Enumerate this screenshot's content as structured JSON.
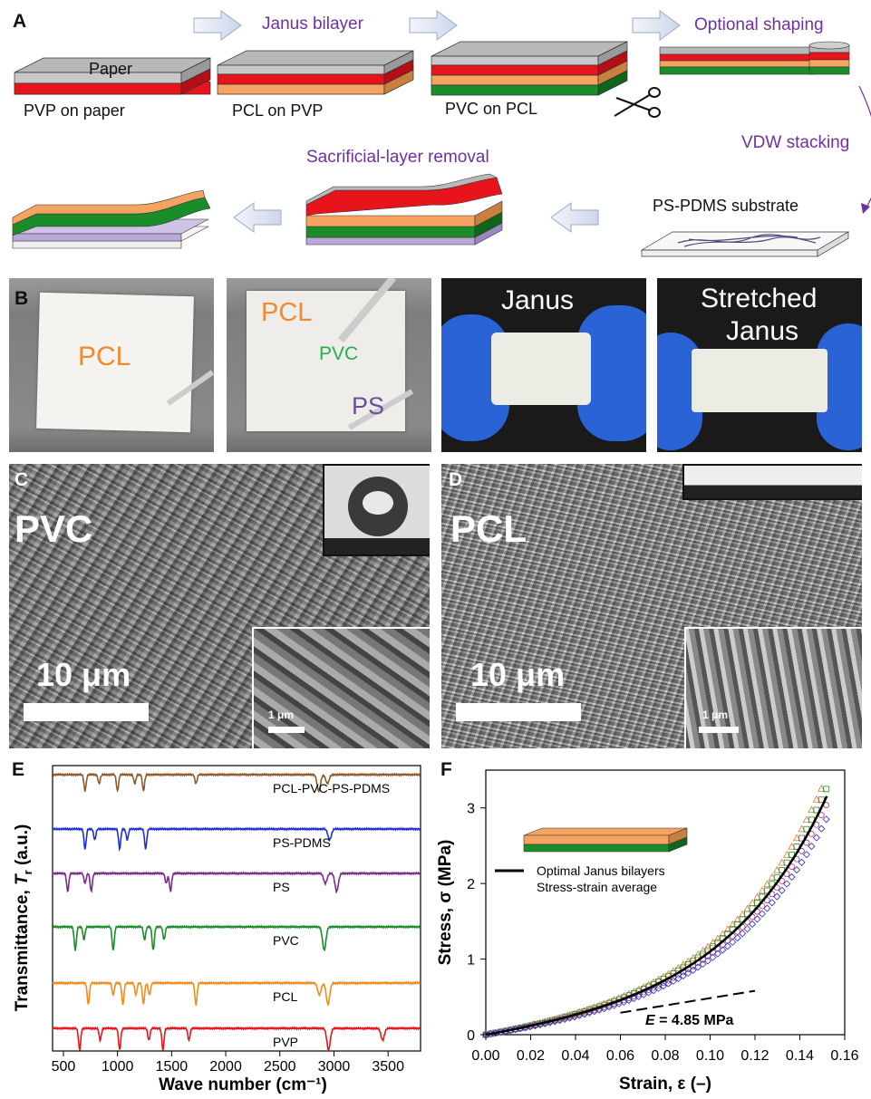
{
  "panelA": {
    "letter": "A",
    "step_janus": "Janus bilayer",
    "step_shaping": "Optional shaping",
    "step_vdw": "VDW stacking",
    "step_removal": "Sacrificial-layer removal",
    "paper_label": "Paper",
    "pvp_on_paper": "PVP on paper",
    "pcl_on_pvp": "PCL on PVP",
    "pvc_on_pcl": "PVC on PCL",
    "substrate_label": "PS-PDMS substrate",
    "colors": {
      "paper": "#b8b8b8",
      "pvp": "#e8141c",
      "pcl": "#f4a460",
      "pvc": "#1a8c2a",
      "ps": "#b9a8d8"
    }
  },
  "panelB": {
    "letter": "B",
    "photo1_label": "PCL",
    "photo2_pcl": "PCL",
    "photo2_pvc": "PVC",
    "photo2_ps": "PS",
    "photo3_label": "Janus",
    "photo4_label1": "Stretched",
    "photo4_label2": "Janus"
  },
  "panelC": {
    "letter": "C",
    "material": "PVC",
    "scale_main": "10 μm",
    "scale_inset": "1 μm"
  },
  "panelD": {
    "letter": "D",
    "material": "PCL",
    "scale_main": "10 μm",
    "scale_inset": "1 μm"
  },
  "panelE": {
    "letter": "E",
    "ylabel_prefix": "Transmittance, ",
    "ylabel_symbol": "T",
    "ylabel_sub": "r",
    "ylabel_suffix": " (a.u.)",
    "xlabel": "Wave number (cm⁻¹)",
    "xticks": [
      "500",
      "1000",
      "1500",
      "2000",
      "2500",
      "3000",
      "3500"
    ]
  },
  "panelF": {
    "letter": "F",
    "ylabel": "Stress, σ (MPa)",
    "xlabel": "Strain, ε (–)",
    "legend_line1": "Optimal Janus bilayers",
    "legend_line2": "Stress-strain average",
    "modulus_symbol": "E",
    "modulus_value": " = 4.85 MPa",
    "xticks": [
      "0.00",
      "0.02",
      "0.04",
      "0.06",
      "0.08",
      "0.10",
      "0.12",
      "0.14",
      "0.16"
    ],
    "yticks": [
      "0",
      "1",
      "2",
      "3"
    ]
  },
  "chart_data": [
    {
      "type": "line",
      "panel": "E",
      "xlabel": "Wave number (cm⁻¹)",
      "ylabel": "Transmittance, Tr (a.u.)",
      "xlim": [
        400,
        3800
      ],
      "series": [
        {
          "name": "PCL-PVC-PS-PDMS",
          "color": "#8b5a2b",
          "peaks": [
            700,
            830,
            1000,
            1160,
            1240,
            1725,
            2860,
            2940
          ]
        },
        {
          "name": "PS-PDMS",
          "color": "#1f2fd6",
          "peaks": [
            700,
            790,
            1020,
            1090,
            1260,
            2960
          ]
        },
        {
          "name": "PS",
          "color": "#7b2a8c",
          "peaks": [
            540,
            700,
            757,
            1450,
            1490,
            2920,
            3025
          ]
        },
        {
          "name": "PVC",
          "color": "#1a8c2a",
          "peaks": [
            610,
            690,
            960,
            1250,
            1330,
            1430,
            2910
          ]
        },
        {
          "name": "PCL",
          "color": "#f08c1c",
          "peaks": [
            730,
            960,
            1050,
            1170,
            1240,
            1295,
            1725,
            2865,
            2945
          ]
        },
        {
          "name": "PVP",
          "color": "#e8141c",
          "peaks": [
            650,
            840,
            1020,
            1290,
            1420,
            1660,
            2950,
            3450
          ]
        }
      ]
    },
    {
      "type": "scatter",
      "panel": "F",
      "xlabel": "Strain, ε (–)",
      "ylabel": "Stress, σ (MPa)",
      "xlim": [
        0,
        0.16
      ],
      "ylim": [
        0,
        3.5
      ],
      "series": [
        {
          "color": "#e07a3a",
          "end": [
            0.151,
            3.35
          ]
        },
        {
          "color": "#2e8b2e",
          "end": [
            0.153,
            3.33
          ]
        },
        {
          "color": "#b0306c",
          "end": [
            0.152,
            3.05
          ]
        },
        {
          "color": "#2a2ad0",
          "end": [
            0.153,
            2.92
          ]
        },
        {
          "name": "Optimal Janus bilayers Stress-strain average",
          "color": "#000000",
          "end": [
            0.153,
            3.22
          ]
        }
      ],
      "modulus_line": {
        "x": [
          0.06,
          0.12
        ],
        "y": [
          0.29,
          0.58
        ],
        "label": "E = 4.85 MPa"
      }
    }
  ]
}
